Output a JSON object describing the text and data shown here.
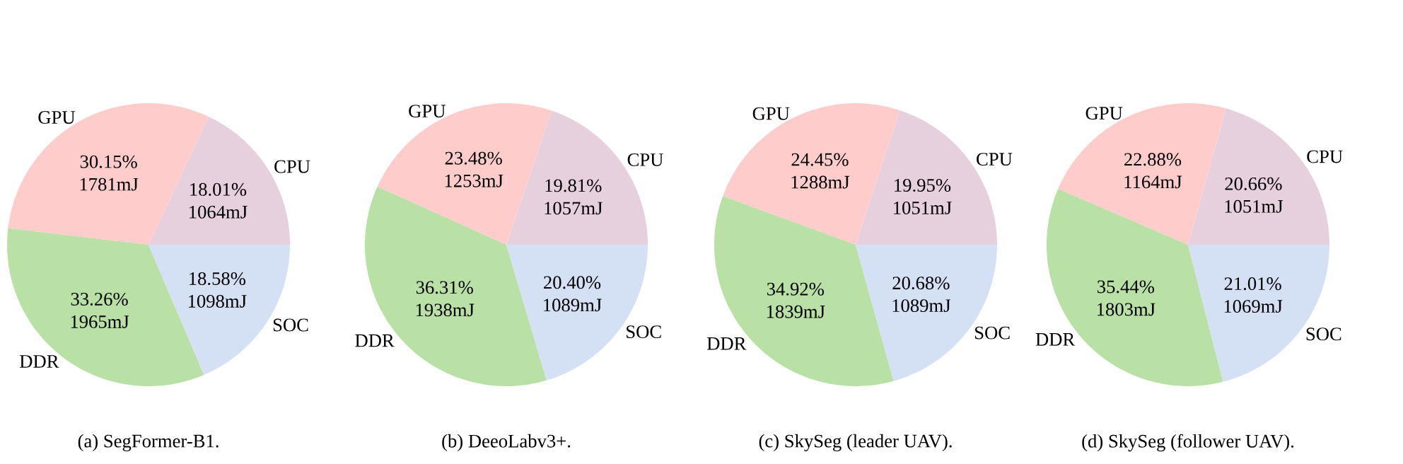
{
  "chart_data": [
    {
      "type": "pie",
      "title": "(a) SegFormer-B1.",
      "categories": [
        "CPU",
        "GPU",
        "DDR",
        "SOC"
      ],
      "values": [
        1064,
        1781,
        1965,
        1098
      ],
      "colors": [
        "#e6d0de",
        "#ffcccc",
        "#b9e0a5",
        "#d4e1f4"
      ],
      "value_labels": [
        "18.01% 1064mJ",
        "30.15% 1781mJ",
        "33.26% 1965mJ",
        "18.58% 1098mJ"
      ]
    },
    {
      "type": "pie",
      "title": "(b) DeeoLabv3+.",
      "categories": [
        "CPU",
        "GPU",
        "DDR",
        "SOC"
      ],
      "values": [
        1057,
        1253,
        1938,
        1089
      ],
      "colors": [
        "#e6d0de",
        "#ffcccc",
        "#b9e0a5",
        "#d4e1f4"
      ],
      "value_labels": [
        "19.81% 1057mJ",
        "23.48% 1253mJ",
        "36.31% 1938mJ",
        "20.40% 1089mJ"
      ]
    },
    {
      "type": "pie",
      "title": "(c) SkySeg (leader UAV).",
      "categories": [
        "CPU",
        "GPU",
        "DDR",
        "SOC"
      ],
      "values": [
        1051,
        1288,
        1839,
        1089
      ],
      "colors": [
        "#e6d0de",
        "#ffcccc",
        "#b9e0a5",
        "#d4e1f4"
      ],
      "value_labels": [
        "19.95% 1051mJ",
        "24.45% 1288mJ",
        "34.92% 1839mJ",
        "20.68% 1089mJ"
      ]
    },
    {
      "type": "pie",
      "title": "(d) SkySeg (follower UAV).",
      "categories": [
        "CPU",
        "GPU",
        "DDR",
        "SOC"
      ],
      "values": [
        1051,
        1164,
        1803,
        1069
      ],
      "colors": [
        "#e6d0de",
        "#ffcccc",
        "#b9e0a5",
        "#d4e1f4"
      ],
      "value_labels": [
        "20.66% 1051mJ",
        "22.88% 1164mJ",
        "35.44% 1803mJ",
        "21.01% 1069mJ"
      ]
    }
  ]
}
